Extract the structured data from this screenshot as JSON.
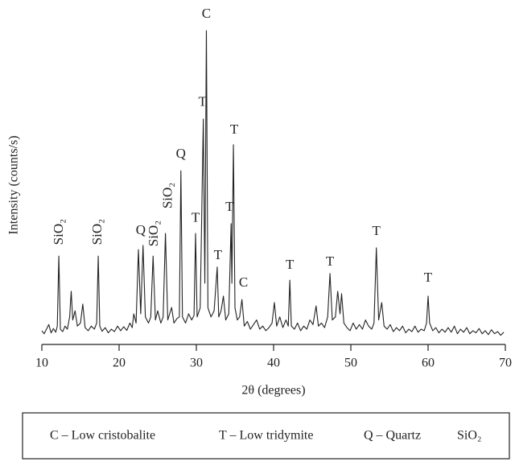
{
  "chart_data": {
    "type": "line",
    "x_label": "2θ (degrees)",
    "y_label": "Intensity (counts/s)",
    "color": "#222222",
    "xlim": [
      10,
      70
    ],
    "xticks": [
      10,
      20,
      30,
      40,
      50,
      60,
      70
    ],
    "ylim": [
      0,
      110
    ],
    "x": [
      10.0,
      10.3,
      10.6,
      10.9,
      11.2,
      11.5,
      11.8,
      12.0,
      12.2,
      12.4,
      12.7,
      13.0,
      13.3,
      13.6,
      13.8,
      14.0,
      14.3,
      14.6,
      15.0,
      15.3,
      15.6,
      16.0,
      16.4,
      16.8,
      17.1,
      17.3,
      17.5,
      17.8,
      18.2,
      18.6,
      19.0,
      19.4,
      19.8,
      20.2,
      20.6,
      21.0,
      21.4,
      21.7,
      21.9,
      22.2,
      22.5,
      22.8,
      23.1,
      23.4,
      23.8,
      24.1,
      24.4,
      24.7,
      25.0,
      25.4,
      25.7,
      26.0,
      26.3,
      26.8,
      27.1,
      27.5,
      27.8,
      28.0,
      28.2,
      28.6,
      29.0,
      29.4,
      29.7,
      29.9,
      30.1,
      30.5,
      30.9,
      31.1,
      31.3,
      31.5,
      31.9,
      32.3,
      32.7,
      32.9,
      33.2,
      33.5,
      33.8,
      34.2,
      34.5,
      34.6,
      34.8,
      35.0,
      35.3,
      35.6,
      35.9,
      36.2,
      36.6,
      37.0,
      37.4,
      37.8,
      38.2,
      38.6,
      39.0,
      39.4,
      39.8,
      40.1,
      40.4,
      40.8,
      41.2,
      41.6,
      41.9,
      42.1,
      42.3,
      42.7,
      43.1,
      43.5,
      43.9,
      44.3,
      44.7,
      45.1,
      45.5,
      45.8,
      46.2,
      46.6,
      47.0,
      47.3,
      47.6,
      48.0,
      48.3,
      48.6,
      48.8,
      49.1,
      49.5,
      49.9,
      50.3,
      50.7,
      51.1,
      51.5,
      51.9,
      52.3,
      52.7,
      53.0,
      53.3,
      53.6,
      54.0,
      54.3,
      54.7,
      55.1,
      55.5,
      55.9,
      56.3,
      56.7,
      57.1,
      57.5,
      57.9,
      58.3,
      58.7,
      59.1,
      59.5,
      59.8,
      60.0,
      60.2,
      60.6,
      61.0,
      61.4,
      61.8,
      62.2,
      62.6,
      63.0,
      63.4,
      63.8,
      64.2,
      64.6,
      65.0,
      65.4,
      65.8,
      66.2,
      66.6,
      67.0,
      67.4,
      67.8,
      68.2,
      68.6,
      69.0,
      69.4,
      69.8
    ],
    "values": [
      4.5,
      3.5,
      5,
      6.5,
      3.8,
      5.2,
      4,
      6,
      28.9,
      5,
      4.2,
      6,
      5,
      9,
      17.4,
      8,
      11,
      6,
      7,
      13.2,
      5.5,
      4.5,
      6,
      5,
      7,
      28.9,
      6,
      4.3,
      5.5,
      3.8,
      5,
      4.2,
      6,
      4.5,
      5.8,
      4.6,
      7,
      5.5,
      10,
      7,
      31,
      10,
      32.4,
      9,
      7,
      9,
      28.9,
      8,
      11,
      7,
      9,
      36.3,
      8,
      12.1,
      7,
      8.5,
      9,
      56.8,
      9,
      7,
      10,
      8,
      9.5,
      36.3,
      9,
      12,
      73.7,
      20,
      102.6,
      12,
      9,
      11,
      25.3,
      9,
      11,
      15.8,
      8,
      10,
      39.5,
      20,
      65.3,
      12,
      8,
      9,
      14.7,
      6,
      7.5,
      5,
      6.5,
      8,
      5,
      6,
      4.5,
      5.5,
      7,
      13.7,
      6,
      9,
      5.5,
      8,
      6,
      21,
      6,
      5,
      7,
      4.5,
      6,
      5,
      8,
      6.5,
      12.6,
      6,
      7,
      5.5,
      9,
      23.2,
      8,
      9,
      17.4,
      10,
      16.6,
      7,
      5.5,
      4.5,
      7,
      5,
      6.5,
      5,
      8,
      6,
      5,
      7,
      31.6,
      8,
      13.7,
      6,
      5,
      6.5,
      4.2,
      5.5,
      4.5,
      6,
      3.8,
      5,
      4.2,
      6,
      4,
      5,
      4.5,
      7,
      15.8,
      7,
      4.5,
      5.5,
      3.8,
      5,
      4,
      5.5,
      4,
      6,
      3.5,
      5,
      4,
      5.5,
      3.5,
      4.5,
      3.8,
      5.2,
      3.5,
      4.5,
      3.2,
      4.8,
      3.5,
      4.2,
      3,
      4
    ],
    "annotations": [
      {
        "text": "SiO₂",
        "x": 12.3,
        "y": 36.8,
        "vertical": true
      },
      {
        "text": "SiO₂",
        "x": 17.3,
        "y": 36.8,
        "vertical": true
      },
      {
        "text": "Q",
        "x": 22.8,
        "y": 37.1,
        "vertical": false
      },
      {
        "text": "SiO₂",
        "x": 24.6,
        "y": 36.3,
        "vertical": true
      },
      {
        "text": "SiO₂",
        "x": 26.4,
        "y": 48.7,
        "vertical": true
      },
      {
        "text": "Q",
        "x": 28.0,
        "y": 62.1,
        "vertical": false
      },
      {
        "text": "T",
        "x": 29.9,
        "y": 41.1,
        "vertical": false
      },
      {
        "text": "T",
        "x": 30.8,
        "y": 79,
        "vertical": false
      },
      {
        "text": "C",
        "x": 31.3,
        "y": 107.9,
        "vertical": false
      },
      {
        "text": "T",
        "x": 32.8,
        "y": 28.9,
        "vertical": false
      },
      {
        "text": "T",
        "x": 34.3,
        "y": 44.7,
        "vertical": false
      },
      {
        "text": "T",
        "x": 34.9,
        "y": 70,
        "vertical": false
      },
      {
        "text": "C",
        "x": 36.1,
        "y": 20,
        "vertical": false
      },
      {
        "text": "T",
        "x": 42.1,
        "y": 25.8,
        "vertical": false
      },
      {
        "text": "T",
        "x": 47.3,
        "y": 26.8,
        "vertical": false
      },
      {
        "text": "T",
        "x": 53.3,
        "y": 36.8,
        "vertical": false
      },
      {
        "text": "T",
        "x": 60.0,
        "y": 21.6,
        "vertical": false
      }
    ],
    "key": [
      "C – Low cristobalite",
      "T – Low tridymite",
      "Q – Quartz",
      "SiO₂"
    ]
  }
}
